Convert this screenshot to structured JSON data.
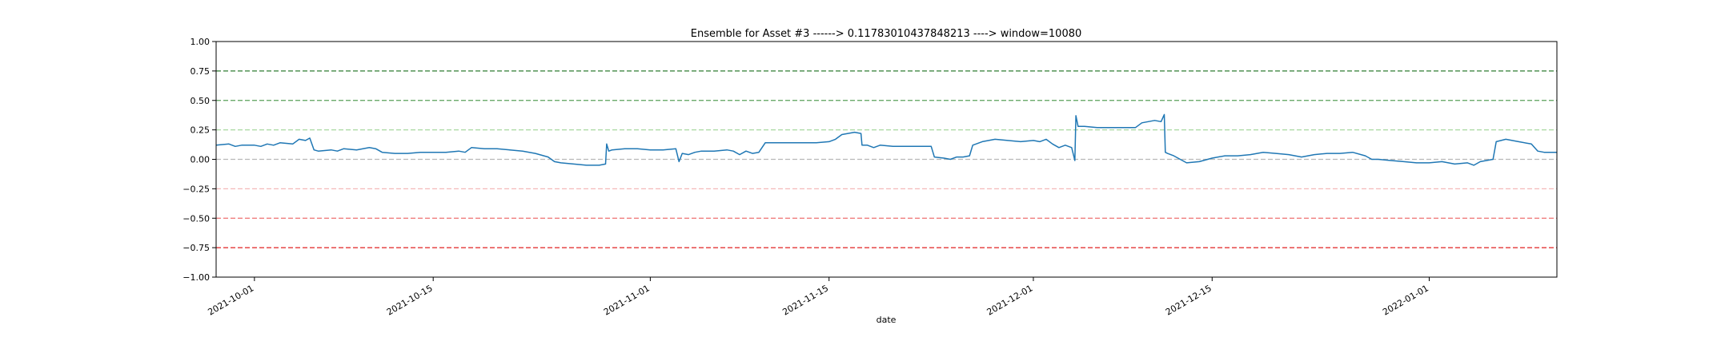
{
  "chart_data": {
    "type": "line",
    "title": "Ensemble for Asset #3 ------> 0.11783010437848213 ----> window=10080",
    "xlabel": "date",
    "ylabel": "",
    "ylim": [
      -1.0,
      1.0
    ],
    "xlim": [
      "2021-09-28",
      "2022-01-11"
    ],
    "grid": false,
    "y_ticks": [
      {
        "value": 1.0,
        "label": "1.00"
      },
      {
        "value": 0.75,
        "label": "0.75"
      },
      {
        "value": 0.5,
        "label": "0.50"
      },
      {
        "value": 0.25,
        "label": "0.25"
      },
      {
        "value": 0.0,
        "label": "0.00"
      },
      {
        "value": -0.25,
        "label": "−0.25"
      },
      {
        "value": -0.5,
        "label": "−0.50"
      },
      {
        "value": -0.75,
        "label": "−0.75"
      },
      {
        "value": -1.0,
        "label": "−1.00"
      }
    ],
    "x_ticks": [
      {
        "value": "2021-10-01",
        "label": "2021-10-01"
      },
      {
        "value": "2021-10-15",
        "label": "2021-10-15"
      },
      {
        "value": "2021-11-01",
        "label": "2021-11-01"
      },
      {
        "value": "2021-11-15",
        "label": "2021-11-15"
      },
      {
        "value": "2021-12-01",
        "label": "2021-12-01"
      },
      {
        "value": "2021-12-15",
        "label": "2021-12-15"
      },
      {
        "value": "2022-01-01",
        "label": "2022-01-01"
      }
    ],
    "reference_lines": [
      {
        "y": 0.75,
        "color": "#2e7d32"
      },
      {
        "y": 0.5,
        "color": "#5aa05a"
      },
      {
        "y": 0.25,
        "color": "#a8d8a0"
      },
      {
        "y": 0.0,
        "color": "#b8b8b8"
      },
      {
        "y": -0.25,
        "color": "#f4b8b8"
      },
      {
        "y": -0.5,
        "color": "#ee7070"
      },
      {
        "y": -0.75,
        "color": "#e02020"
      }
    ],
    "series": [
      {
        "color": "#1f77b4",
        "points": [
          [
            "2021-09-28",
            0.12
          ],
          [
            "2021-09-29",
            0.13
          ],
          [
            "2021-09-29T12:00",
            0.11
          ],
          [
            "2021-09-30",
            0.12
          ],
          [
            "2021-10-01",
            0.12
          ],
          [
            "2021-10-01T12:00",
            0.11
          ],
          [
            "2021-10-02",
            0.13
          ],
          [
            "2021-10-02T12:00",
            0.12
          ],
          [
            "2021-10-03",
            0.14
          ],
          [
            "2021-10-04",
            0.13
          ],
          [
            "2021-10-04T12:00",
            0.17
          ],
          [
            "2021-10-05",
            0.16
          ],
          [
            "2021-10-05T08:00",
            0.18
          ],
          [
            "2021-10-05T16:00",
            0.08
          ],
          [
            "2021-10-06",
            0.07
          ],
          [
            "2021-10-07",
            0.08
          ],
          [
            "2021-10-07T12:00",
            0.07
          ],
          [
            "2021-10-08",
            0.09
          ],
          [
            "2021-10-09",
            0.08
          ],
          [
            "2021-10-10",
            0.1
          ],
          [
            "2021-10-10T12:00",
            0.09
          ],
          [
            "2021-10-11",
            0.06
          ],
          [
            "2021-10-12",
            0.05
          ],
          [
            "2021-10-13",
            0.05
          ],
          [
            "2021-10-14",
            0.06
          ],
          [
            "2021-10-15",
            0.06
          ],
          [
            "2021-10-16",
            0.06
          ],
          [
            "2021-10-17",
            0.07
          ],
          [
            "2021-10-17T12:00",
            0.06
          ],
          [
            "2021-10-18",
            0.1
          ],
          [
            "2021-10-19",
            0.09
          ],
          [
            "2021-10-20",
            0.09
          ],
          [
            "2021-10-21",
            0.08
          ],
          [
            "2021-10-22",
            0.07
          ],
          [
            "2021-10-23",
            0.05
          ],
          [
            "2021-10-24",
            0.02
          ],
          [
            "2021-10-24T12:00",
            -0.02
          ],
          [
            "2021-10-25",
            -0.03
          ],
          [
            "2021-10-26",
            -0.04
          ],
          [
            "2021-10-27",
            -0.05
          ],
          [
            "2021-10-28",
            -0.05
          ],
          [
            "2021-10-28T12:00",
            -0.04
          ],
          [
            "2021-10-28T14:00",
            0.13
          ],
          [
            "2021-10-28T18:00",
            0.07
          ],
          [
            "2021-10-29",
            0.08
          ],
          [
            "2021-10-30",
            0.09
          ],
          [
            "2021-10-31",
            0.09
          ],
          [
            "2021-11-01",
            0.08
          ],
          [
            "2021-11-02",
            0.08
          ],
          [
            "2021-11-03",
            0.09
          ],
          [
            "2021-11-03T06:00",
            -0.02
          ],
          [
            "2021-11-03T12:00",
            0.05
          ],
          [
            "2021-11-04",
            0.04
          ],
          [
            "2021-11-04T12:00",
            0.06
          ],
          [
            "2021-11-05",
            0.07
          ],
          [
            "2021-11-06",
            0.07
          ],
          [
            "2021-11-07",
            0.08
          ],
          [
            "2021-11-07T12:00",
            0.07
          ],
          [
            "2021-11-08",
            0.04
          ],
          [
            "2021-11-08T12:00",
            0.07
          ],
          [
            "2021-11-09",
            0.05
          ],
          [
            "2021-11-09T12:00",
            0.06
          ],
          [
            "2021-11-10",
            0.14
          ],
          [
            "2021-11-11",
            0.14
          ],
          [
            "2021-11-12",
            0.14
          ],
          [
            "2021-11-13",
            0.14
          ],
          [
            "2021-11-14",
            0.14
          ],
          [
            "2021-11-15",
            0.15
          ],
          [
            "2021-11-15T12:00",
            0.17
          ],
          [
            "2021-11-16",
            0.21
          ],
          [
            "2021-11-17",
            0.23
          ],
          [
            "2021-11-17T12:00",
            0.22
          ],
          [
            "2021-11-17T14:00",
            0.12
          ],
          [
            "2021-11-18",
            0.12
          ],
          [
            "2021-11-18T12:00",
            0.1
          ],
          [
            "2021-11-19",
            0.12
          ],
          [
            "2021-11-20",
            0.11
          ],
          [
            "2021-11-21",
            0.11
          ],
          [
            "2021-11-22",
            0.11
          ],
          [
            "2021-11-23",
            0.11
          ],
          [
            "2021-11-23T06:00",
            0.02
          ],
          [
            "2021-11-24",
            0.01
          ],
          [
            "2021-11-24T12:00",
            0.0
          ],
          [
            "2021-11-25",
            0.02
          ],
          [
            "2021-11-25T12:00",
            0.02
          ],
          [
            "2021-11-26",
            0.03
          ],
          [
            "2021-11-26T06:00",
            0.12
          ],
          [
            "2021-11-27",
            0.15
          ],
          [
            "2021-11-28",
            0.17
          ],
          [
            "2021-11-29",
            0.16
          ],
          [
            "2021-11-30",
            0.15
          ],
          [
            "2021-12-01",
            0.16
          ],
          [
            "2021-12-01T12:00",
            0.15
          ],
          [
            "2021-12-02",
            0.17
          ],
          [
            "2021-12-02T12:00",
            0.13
          ],
          [
            "2021-12-03",
            0.1
          ],
          [
            "2021-12-03T12:00",
            0.12
          ],
          [
            "2021-12-04",
            0.1
          ],
          [
            "2021-12-04T06:00",
            -0.01
          ],
          [
            "2021-12-04T08:00",
            0.37
          ],
          [
            "2021-12-04T12:00",
            0.28
          ],
          [
            "2021-12-05",
            0.28
          ],
          [
            "2021-12-06",
            0.27
          ],
          [
            "2021-12-07",
            0.27
          ],
          [
            "2021-12-08",
            0.27
          ],
          [
            "2021-12-09",
            0.27
          ],
          [
            "2021-12-09T12:00",
            0.31
          ],
          [
            "2021-12-10",
            0.32
          ],
          [
            "2021-12-10T12:00",
            0.33
          ],
          [
            "2021-12-11",
            0.32
          ],
          [
            "2021-12-11T06:00",
            0.38
          ],
          [
            "2021-12-11T08:00",
            0.06
          ],
          [
            "2021-12-11T12:00",
            0.05
          ],
          [
            "2021-12-12",
            0.03
          ],
          [
            "2021-12-12T12:00",
            0.0
          ],
          [
            "2021-12-13",
            -0.03
          ],
          [
            "2021-12-14",
            -0.02
          ],
          [
            "2021-12-15",
            0.01
          ],
          [
            "2021-12-16",
            0.03
          ],
          [
            "2021-12-17",
            0.03
          ],
          [
            "2021-12-18",
            0.04
          ],
          [
            "2021-12-19",
            0.06
          ],
          [
            "2021-12-20",
            0.05
          ],
          [
            "2021-12-21",
            0.04
          ],
          [
            "2021-12-22",
            0.02
          ],
          [
            "2021-12-23",
            0.04
          ],
          [
            "2021-12-24",
            0.05
          ],
          [
            "2021-12-25",
            0.05
          ],
          [
            "2021-12-26",
            0.06
          ],
          [
            "2021-12-27",
            0.03
          ],
          [
            "2021-12-27T12:00",
            0.0
          ],
          [
            "2021-12-28",
            0.0
          ],
          [
            "2021-12-29",
            -0.01
          ],
          [
            "2021-12-30",
            -0.02
          ],
          [
            "2021-12-31",
            -0.03
          ],
          [
            "2022-01-01",
            -0.03
          ],
          [
            "2022-01-02",
            -0.02
          ],
          [
            "2022-01-03",
            -0.04
          ],
          [
            "2022-01-04",
            -0.03
          ],
          [
            "2022-01-04T12:00",
            -0.05
          ],
          [
            "2022-01-05",
            -0.02
          ],
          [
            "2022-01-06",
            0.0
          ],
          [
            "2022-01-06T06:00",
            0.15
          ],
          [
            "2022-01-07",
            0.17
          ],
          [
            "2022-01-08",
            0.15
          ],
          [
            "2022-01-09",
            0.13
          ],
          [
            "2022-01-09T12:00",
            0.07
          ],
          [
            "2022-01-10",
            0.06
          ],
          [
            "2022-01-11",
            0.06
          ]
        ]
      }
    ]
  }
}
